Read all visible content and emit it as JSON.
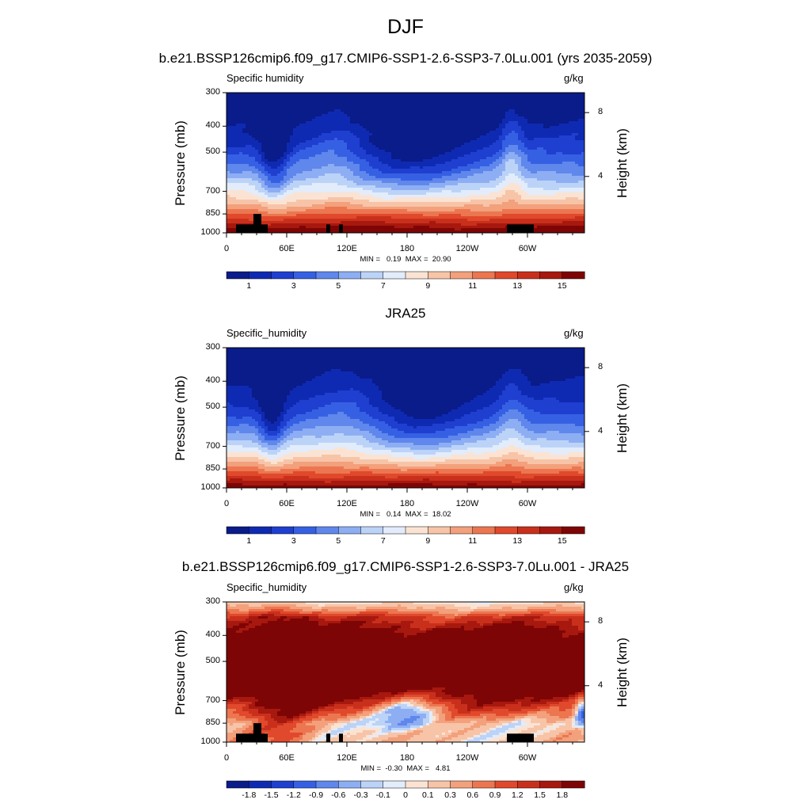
{
  "figure": {
    "title": "DJF"
  },
  "chart_data": [
    {
      "type": "heatmap",
      "title": "b.e21.BSSP126cmip6.f09_g17.CMIP6-SSP1-2.6-SSP3-7.0Lu.001 (yrs 2035-2059)",
      "variable_label": "Specific humidity",
      "units": "g/kg",
      "ylabel": "Pressure (mb)",
      "ylabel_right": "Height (km)",
      "x_tick_labels": [
        "0",
        "60E",
        "120E",
        "180",
        "120W",
        "60W"
      ],
      "y_tick_labels": [
        "300",
        "400",
        "500",
        "700",
        "850",
        "1000"
      ],
      "y_right_tick_labels": [
        "8",
        "4"
      ],
      "ylim": [
        1000,
        300
      ],
      "min_max_label": "MIN =   0.19  MAX =  20.90",
      "min": 0.19,
      "max": 20.9,
      "colorbar_labels": [
        "1",
        "3",
        "5",
        "7",
        "9",
        "11",
        "13",
        "15"
      ],
      "colorbar_levels": [
        1,
        2,
        3,
        4,
        5,
        6,
        7,
        8,
        9,
        10,
        11,
        12,
        13,
        14,
        15
      ],
      "colorbar_colors": [
        "#0a1b8a",
        "#0f2ab2",
        "#1f3fd0",
        "#3660e3",
        "#5f87ec",
        "#8eaef3",
        "#bcd3f8",
        "#e2ecfb",
        "#fbe3d3",
        "#f7c4a8",
        "#f3a07c",
        "#ec7650",
        "#e0492c",
        "#c9301c",
        "#a7180f",
        "#7e0505"
      ]
    },
    {
      "type": "heatmap",
      "title": "JRA25",
      "variable_label": "Specific_humidity",
      "units": "g/kg",
      "ylabel": "Pressure (mb)",
      "ylabel_right": "Height (km)",
      "x_tick_labels": [
        "0",
        "60E",
        "120E",
        "180",
        "120W",
        "60W"
      ],
      "y_tick_labels": [
        "300",
        "400",
        "500",
        "700",
        "850",
        "1000"
      ],
      "y_right_tick_labels": [
        "8",
        "4"
      ],
      "ylim": [
        1000,
        300
      ],
      "min_max_label": "MIN =   0.14  MAX =  18.02",
      "min": 0.14,
      "max": 18.02,
      "colorbar_labels": [
        "1",
        "3",
        "5",
        "7",
        "9",
        "11",
        "13",
        "15"
      ],
      "colorbar_levels": [
        1,
        2,
        3,
        4,
        5,
        6,
        7,
        8,
        9,
        10,
        11,
        12,
        13,
        14,
        15
      ],
      "colorbar_colors": [
        "#0a1b8a",
        "#0f2ab2",
        "#1f3fd0",
        "#3660e3",
        "#5f87ec",
        "#8eaef3",
        "#bcd3f8",
        "#e2ecfb",
        "#fbe3d3",
        "#f7c4a8",
        "#f3a07c",
        "#ec7650",
        "#e0492c",
        "#c9301c",
        "#a7180f",
        "#7e0505"
      ]
    },
    {
      "type": "heatmap",
      "title": "b.e21.BSSP126cmip6.f09_g17.CMIP6-SSP1-2.6-SSP3-7.0Lu.001 - JRA25",
      "variable_label": "Specific_humidity",
      "units": "g/kg",
      "ylabel": "Pressure (mb)",
      "ylabel_right": "Height (km)",
      "x_tick_labels": [
        "0",
        "60E",
        "120E",
        "180",
        "120W",
        "60W"
      ],
      "y_tick_labels": [
        "300",
        "400",
        "500",
        "700",
        "850",
        "1000"
      ],
      "y_right_tick_labels": [
        "8",
        "4"
      ],
      "ylim": [
        1000,
        300
      ],
      "min_max_label": "MIN =  -0.30  MAX =   4.81",
      "min": -0.3,
      "max": 4.81,
      "colorbar_labels": [
        "-1.8",
        "-1.5",
        "-1.2",
        "-0.9",
        "-0.6",
        "-0.3",
        "-0.1",
        "0",
        "0.1",
        "0.3",
        "0.6",
        "0.9",
        "1.2",
        "1.5",
        "1.8"
      ],
      "colorbar_levels": [
        -1.8,
        -1.5,
        -1.2,
        -0.9,
        -0.6,
        -0.3,
        -0.1,
        0,
        0.1,
        0.3,
        0.6,
        0.9,
        1.2,
        1.5,
        1.8
      ],
      "colorbar_colors": [
        "#0a1b8a",
        "#0f2ab2",
        "#1f3fd0",
        "#3660e3",
        "#5f87ec",
        "#8eaef3",
        "#bcd3f8",
        "#e2ecfb",
        "#fbe3d3",
        "#f7c4a8",
        "#f3a07c",
        "#ec7650",
        "#e0492c",
        "#c9301c",
        "#a7180f",
        "#7e0505"
      ]
    }
  ]
}
